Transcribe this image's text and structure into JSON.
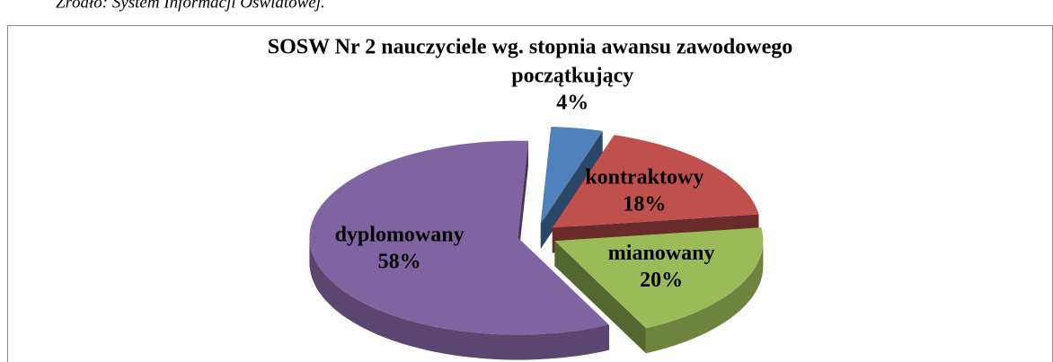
{
  "source": "Źródło: System Informacji Oświatowej.",
  "chart_data": {
    "type": "pie3d",
    "title": "SOSW Nr 2 nauczyciele wg. stopnia awansu zawodowego",
    "categories": [
      "początkujący",
      "kontraktowy",
      "mianowany",
      "dyplomowany"
    ],
    "values": [
      4,
      18,
      20,
      58
    ],
    "value_labels": [
      "4%",
      "18%",
      "20%",
      "58%"
    ],
    "colors": [
      "#4f81bd",
      "#c0504d",
      "#9bbb59",
      "#8064a2"
    ]
  }
}
